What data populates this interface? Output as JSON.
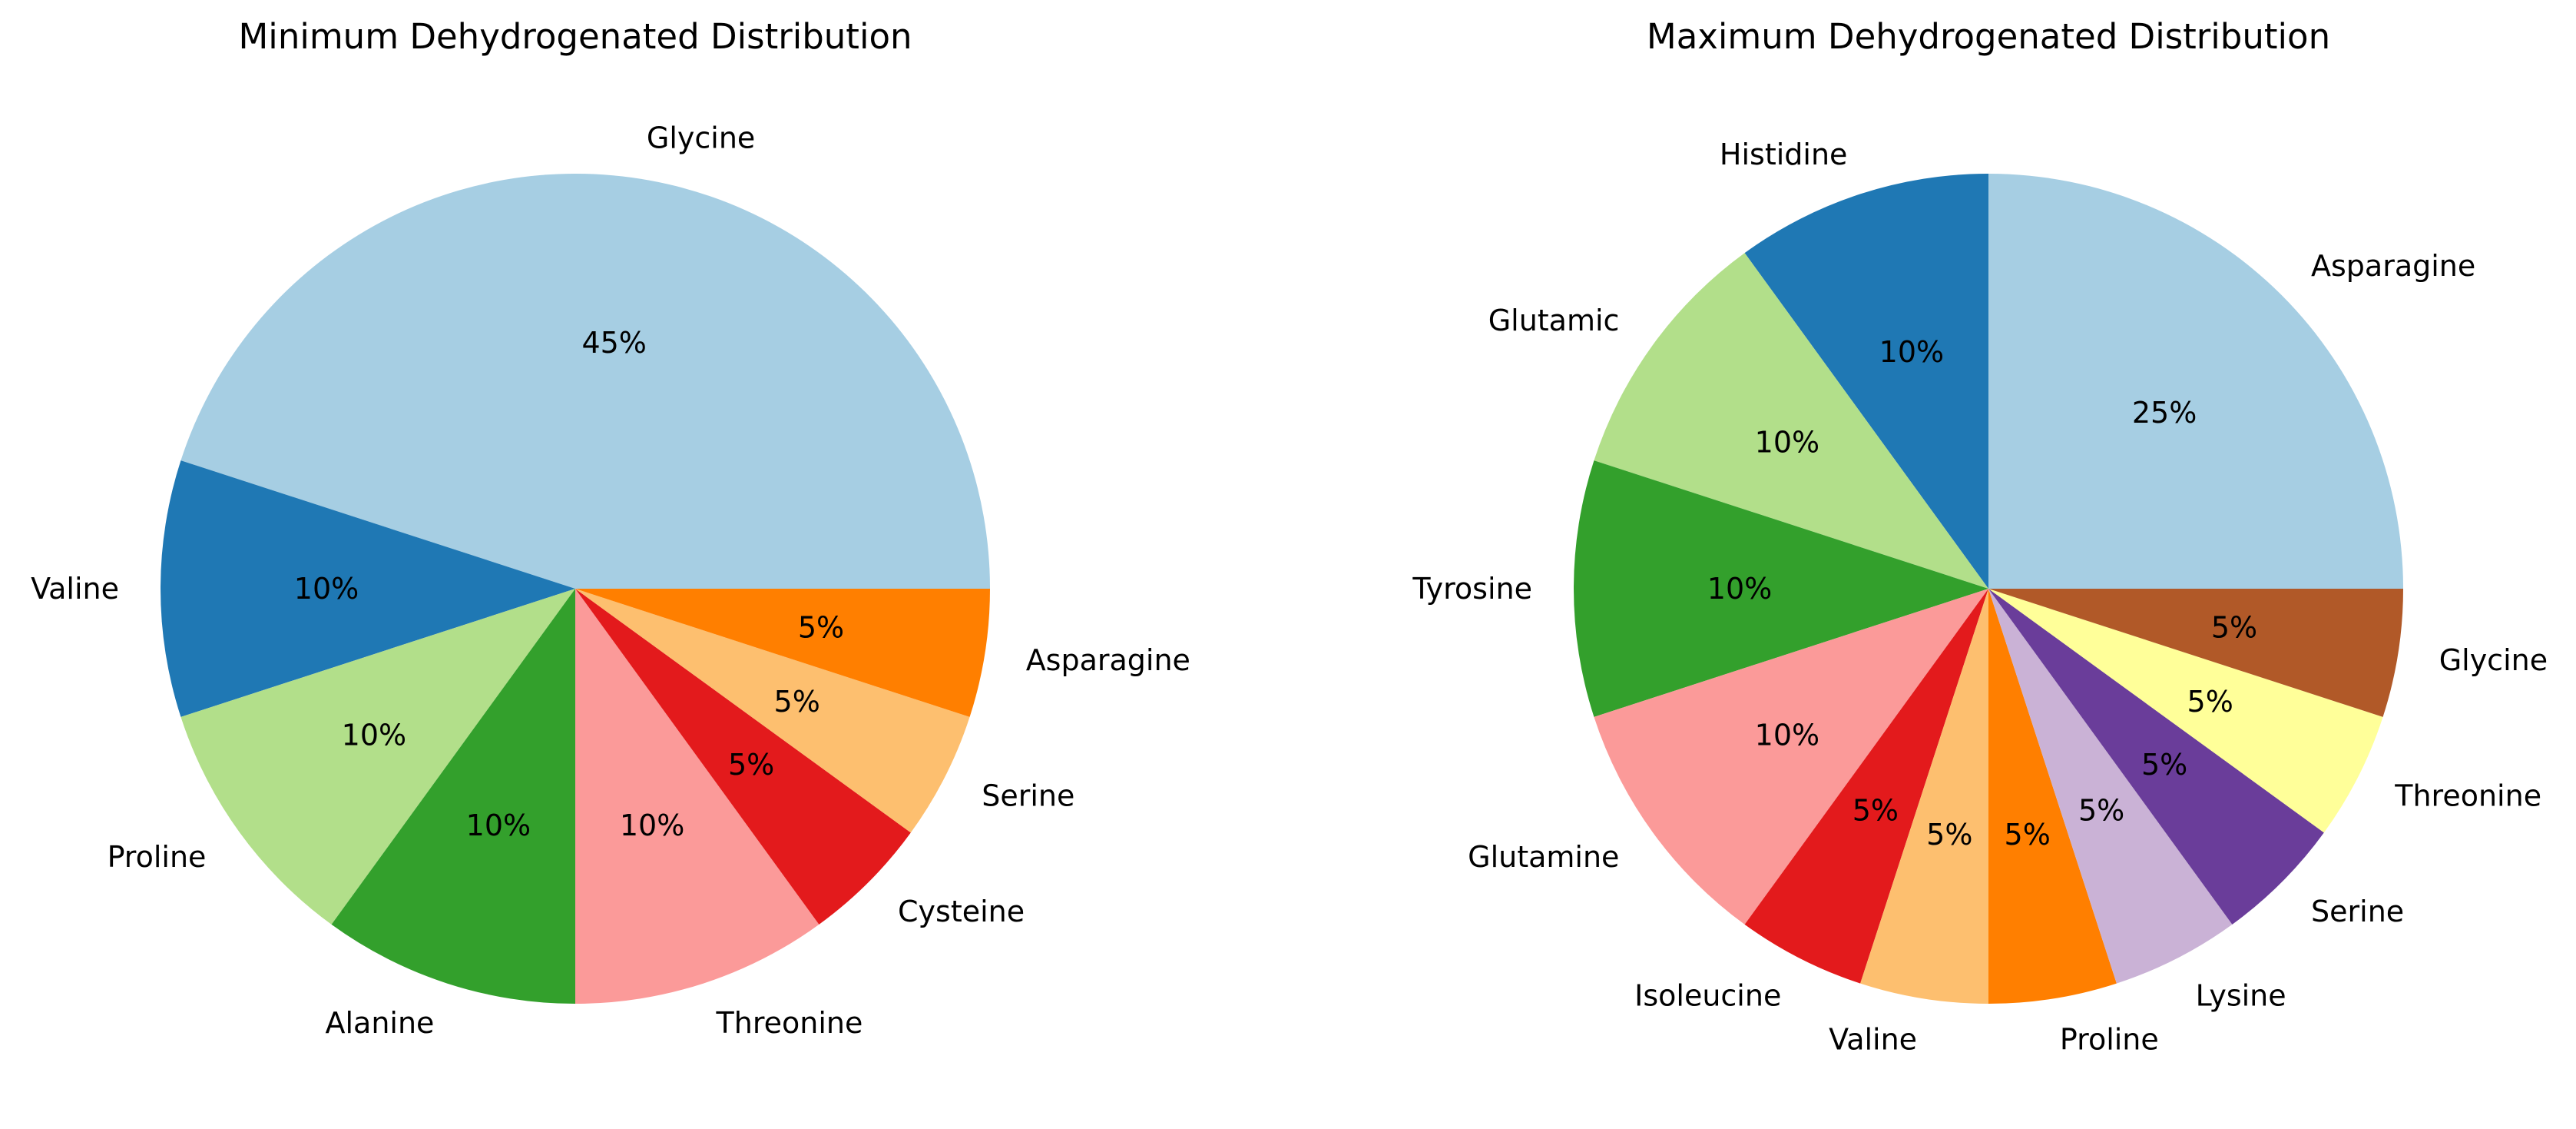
{
  "chart_data": [
    {
      "type": "pie",
      "title": "Minimum Dehydrogenated Distribution",
      "start_angle_deg": 0,
      "direction": "counterclockwise",
      "slices": [
        {
          "label": "Glycine",
          "value": 45,
          "pct_label": "45%",
          "color": "#a6cee3"
        },
        {
          "label": "Valine",
          "value": 10,
          "pct_label": "10%",
          "color": "#1f78b4"
        },
        {
          "label": "Proline",
          "value": 10,
          "pct_label": "10%",
          "color": "#b2df8a"
        },
        {
          "label": "Alanine",
          "value": 10,
          "pct_label": "10%",
          "color": "#33a02c"
        },
        {
          "label": "Threonine",
          "value": 10,
          "pct_label": "10%",
          "color": "#fb9a99"
        },
        {
          "label": "Cysteine",
          "value": 5,
          "pct_label": "5%",
          "color": "#e31a1c"
        },
        {
          "label": "Serine",
          "value": 5,
          "pct_label": "5%",
          "color": "#fdbf6f"
        },
        {
          "label": "Asparagine",
          "value": 5,
          "pct_label": "5%",
          "color": "#ff7f00"
        }
      ]
    },
    {
      "type": "pie",
      "title": "Maximum Dehydrogenated Distribution",
      "start_angle_deg": 0,
      "direction": "counterclockwise",
      "slices": [
        {
          "label": "Asparagine",
          "value": 25,
          "pct_label": "25%",
          "color": "#a6cee3"
        },
        {
          "label": "Histidine",
          "value": 10,
          "pct_label": "10%",
          "color": "#1f78b4"
        },
        {
          "label": "Glutamic",
          "value": 10,
          "pct_label": "10%",
          "color": "#b2df8a"
        },
        {
          "label": "Tyrosine",
          "value": 10,
          "pct_label": "10%",
          "color": "#33a02c"
        },
        {
          "label": "Glutamine",
          "value": 10,
          "pct_label": "10%",
          "color": "#fb9a99"
        },
        {
          "label": "Isoleucine",
          "value": 5,
          "pct_label": "5%",
          "color": "#e31a1c"
        },
        {
          "label": "Valine",
          "value": 5,
          "pct_label": "5%",
          "color": "#fdbf6f"
        },
        {
          "label": "Proline",
          "value": 5,
          "pct_label": "5%",
          "color": "#ff7f00"
        },
        {
          "label": "Lysine",
          "value": 5,
          "pct_label": "5%",
          "color": "#cab2d6"
        },
        {
          "label": "Serine",
          "value": 5,
          "pct_label": "5%",
          "color": "#6a3d9a"
        },
        {
          "label": "Threonine",
          "value": 5,
          "pct_label": "5%",
          "color": "#ffff99"
        },
        {
          "label": "Glycine",
          "value": 5,
          "pct_label": "5%",
          "color": "#b15928"
        }
      ]
    }
  ]
}
